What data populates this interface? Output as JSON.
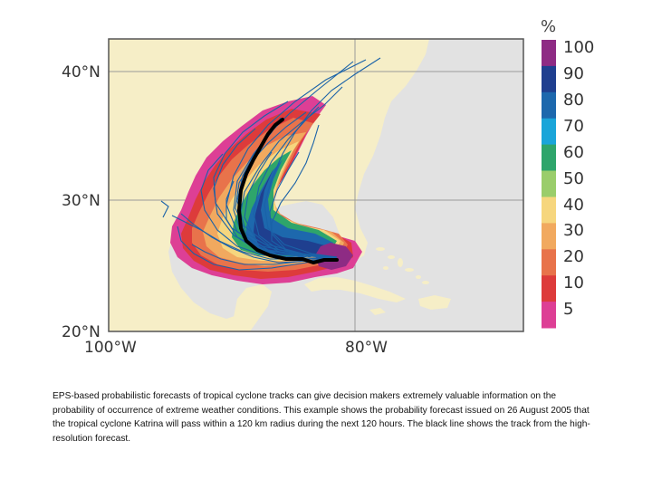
{
  "map": {
    "lat_labels": [
      "40°N",
      "30°N",
      "20°N"
    ],
    "lon_labels": [
      "100°W",
      "80°W"
    ],
    "colors": {
      "sea": "#e2e2e2",
      "land": "#f6eec7",
      "frame": "#555555",
      "grid": "#9a9a9a",
      "track_lines": "#1a62a8",
      "hires_track": "#000000"
    }
  },
  "legend": {
    "unit": "%",
    "items": [
      {
        "label": "100",
        "color": "#8e2b84"
      },
      {
        "label": "90",
        "color": "#1f3f8f"
      },
      {
        "label": "80",
        "color": "#1d68ad"
      },
      {
        "label": "70",
        "color": "#1aa5d9"
      },
      {
        "label": "60",
        "color": "#2ea56b"
      },
      {
        "label": "50",
        "color": "#9acd6b"
      },
      {
        "label": "40",
        "color": "#f6d67e"
      },
      {
        "label": "30",
        "color": "#f1a95f"
      },
      {
        "label": "20",
        "color": "#e8734b"
      },
      {
        "label": "10",
        "color": "#dd3b3b"
      },
      {
        "label": "5",
        "color": "#dd3f95"
      }
    ]
  },
  "caption": "EPS-based probabilistic forecasts of tropical cyclone tracks can give decision makers extremely valuable information on the probability of occurrence of extreme weather conditions. This example shows the probability forecast issued on 26 August 2005 that the tropical cyclone Katrina will pass within a 120 km radius during the next 120 hours. The black line shows the track from the high-resolution forecast."
}
